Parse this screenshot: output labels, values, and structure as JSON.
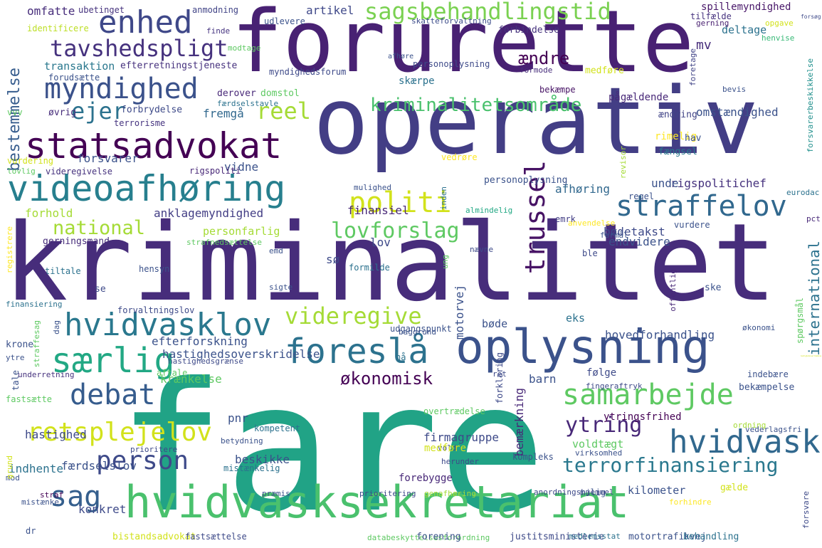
{
  "words": [
    {
      "text": "fare",
      "color": "#21a386"
    },
    {
      "text": "kriminalitet",
      "color": "#472d7b"
    },
    {
      "text": "operativ",
      "color": "#433e85"
    },
    {
      "text": "forurette",
      "color": "#482173"
    },
    {
      "text": "hvidvasksekretariat",
      "color": "#4ac16d"
    },
    {
      "text": "oplysning",
      "color": "#3b528b"
    },
    {
      "text": "videoafhøring",
      "color": "#277f8e"
    },
    {
      "text": "statsadvokat",
      "color": "#440154"
    },
    {
      "text": "enhed",
      "color": "#3f4889"
    },
    {
      "text": "myndighed",
      "color": "#3b528b"
    },
    {
      "text": "tavshedspligt",
      "color": "#46327e"
    },
    {
      "text": "sagsbehandlingstid",
      "color": "#7ad151"
    },
    {
      "text": "kriminalitetsområde",
      "color": "#4ac16d"
    },
    {
      "text": "ejer",
      "color": "#2c728e"
    },
    {
      "text": "reel",
      "color": "#a5db36"
    },
    {
      "text": "bestemmelse",
      "color": "#365c8d"
    },
    {
      "text": "straffelov",
      "color": "#31688e"
    },
    {
      "text": "trussel",
      "color": "#471365"
    },
    {
      "text": "politi",
      "color": "#d2e21b"
    },
    {
      "text": "lovforslag",
      "color": "#5ec962"
    },
    {
      "text": "national",
      "color": "#a5db36"
    },
    {
      "text": "hvidvasklov",
      "color": "#2a788e"
    },
    {
      "text": "videregive",
      "color": "#a5db36"
    },
    {
      "text": "særlig",
      "color": "#22a884"
    },
    {
      "text": "foreslå",
      "color": "#2c728e"
    },
    {
      "text": "debat",
      "color": "#365c8d"
    },
    {
      "text": "samarbejde",
      "color": "#5ec962"
    },
    {
      "text": "hvidvask",
      "color": "#31688e"
    },
    {
      "text": "retsplejelov",
      "color": "#d2e21b"
    },
    {
      "text": "person",
      "color": "#3e4a89"
    },
    {
      "text": "terrorfinansiering",
      "color": "#2a788e"
    },
    {
      "text": "sag",
      "color": "#355f8d"
    },
    {
      "text": "ytring",
      "color": "#482878"
    },
    {
      "text": "økonomisk",
      "color": "#440154"
    },
    {
      "text": "international",
      "color": "#2c728e"
    },
    {
      "text": "omfatte",
      "color": "#472d7b"
    },
    {
      "text": "ubetinget",
      "color": "#46337e"
    },
    {
      "text": "identificere",
      "color": "#bddf26"
    },
    {
      "text": "anmodning",
      "color": "#414487"
    },
    {
      "text": "udlevere",
      "color": "#3b528b"
    },
    {
      "text": "finde",
      "color": "#463480"
    },
    {
      "text": "artikel",
      "color": "#3f4889"
    },
    {
      "text": "transaktion",
      "color": "#2a788e"
    },
    {
      "text": "efterretningstjeneste",
      "color": "#46317e"
    },
    {
      "text": "forudsætte",
      "color": "#3b528b"
    },
    {
      "text": "modtage",
      "color": "#5ec962"
    },
    {
      "text": "spillemyndighed",
      "color": "#481769"
    },
    {
      "text": "tilfælde",
      "color": "#46327e"
    },
    {
      "text": "skatteforvaltning",
      "color": "#3d4d8a"
    },
    {
      "text": "forbindelse",
      "color": "#46337e"
    },
    {
      "text": "deltage",
      "color": "#2c728e"
    },
    {
      "text": "mv",
      "color": "#472d7b"
    },
    {
      "text": "gerning",
      "color": "#481f70"
    },
    {
      "text": "opgave",
      "color": "#d2e21b"
    },
    {
      "text": "forsøg",
      "color": "#3e4a89"
    },
    {
      "text": "henvise",
      "color": "#38b977"
    },
    {
      "text": "ændre",
      "color": "#440154"
    },
    {
      "text": "afhøre",
      "color": "#3b528b"
    },
    {
      "text": "personoplysning",
      "color": "#3e4a89"
    },
    {
      "text": "skærpe",
      "color": "#2c728e"
    },
    {
      "text": "bekæmpe",
      "color": "#471365"
    },
    {
      "text": "pågældende",
      "color": "#482878"
    },
    {
      "text": "formode",
      "color": "#472d7b"
    },
    {
      "text": "medføre",
      "color": "#d2e21b"
    },
    {
      "text": "foretage",
      "color": "#414487"
    },
    {
      "text": "bevis",
      "color": "#3b528b"
    },
    {
      "text": "forsvarerbeskikkelse",
      "color": "#21908d"
    },
    {
      "text": "derover",
      "color": "#482878"
    },
    {
      "text": "domstol",
      "color": "#5ec962"
    },
    {
      "text": "færdselstavle",
      "color": "#2c728e"
    },
    {
      "text": "vvv",
      "color": "#5ec962"
    },
    {
      "text": "øvrig",
      "color": "#472d7b"
    },
    {
      "text": "forbrydelse",
      "color": "#3e4a89"
    },
    {
      "text": "terrorisme",
      "color": "#463480"
    },
    {
      "text": "fremgå",
      "color": "#31688e"
    },
    {
      "text": "omstændighed",
      "color": "#3b528b"
    },
    {
      "text": "ændring",
      "color": "#414487"
    },
    {
      "text": "rimelig",
      "color": "#fde725"
    },
    {
      "text": "hav",
      "color": "#3b528b"
    },
    {
      "text": "fængsel",
      "color": "#2a788e"
    },
    {
      "text": "forsvarer",
      "color": "#3b528b"
    },
    {
      "text": "vedrøre",
      "color": "#fde725"
    },
    {
      "text": "vidne",
      "color": "#3b528b"
    },
    {
      "text": "vurdering",
      "color": "#d2e21b"
    },
    {
      "text": "lovlig",
      "color": "#5ec962"
    },
    {
      "text": "videregivelse",
      "color": "#46327e"
    },
    {
      "text": "rigspoliti",
      "color": "#482878"
    },
    {
      "text": "revisor",
      "color": "#a5db36"
    },
    {
      "text": "mulighed",
      "color": "#3b528b"
    },
    {
      "text": "inden",
      "color": "#2c728e"
    },
    {
      "text": "personoplysning",
      "color": "#3b528b"
    },
    {
      "text": "rigspolitichef",
      "color": "#46327e"
    },
    {
      "text": "unde",
      "color": "#3b528b"
    },
    {
      "text": "eurodac",
      "color": "#2c728e"
    },
    {
      "text": "afhøring",
      "color": "#31688e"
    },
    {
      "text": "regel",
      "color": "#3b528b"
    },
    {
      "text": "finansiel",
      "color": "#482878"
    },
    {
      "text": "almindelig",
      "color": "#22a884"
    },
    {
      "text": "anklagemyndighed",
      "color": "#433e85"
    },
    {
      "text": "forhold",
      "color": "#a5db36"
    },
    {
      "text": "personfarlig",
      "color": "#a5db36"
    },
    {
      "text": "bødetakst",
      "color": "#3e4a89"
    },
    {
      "text": "emrk",
      "color": "#433e85"
    },
    {
      "text": "anvendelse",
      "color": "#fde725"
    },
    {
      "text": "vurdere",
      "color": "#3b528b"
    },
    {
      "text": "formål",
      "color": "#3b528b"
    },
    {
      "text": "pct",
      "color": "#482878"
    },
    {
      "text": "lov",
      "color": "#3e4a89"
    },
    {
      "text": "endvidere",
      "color": "#3b528b"
    },
    {
      "text": "gerningsmand",
      "color": "#472d7b"
    },
    {
      "text": "strafnedsættelse",
      "color": "#5ec962"
    },
    {
      "text": "registrere",
      "color": "#fde725"
    },
    {
      "text": "emd",
      "color": "#3b528b"
    },
    {
      "text": "nævne",
      "color": "#3e4a89"
    },
    {
      "text": "ung",
      "color": "#5ec962"
    },
    {
      "text": "sø",
      "color": "#3e4a89"
    },
    {
      "text": "ble",
      "color": "#3e4a89"
    },
    {
      "text": "tiltale",
      "color": "#2c728e"
    },
    {
      "text": "hensyn",
      "color": "#3b528b"
    },
    {
      "text": "formilde",
      "color": "#2c728e"
    },
    {
      "text": "motorvej",
      "color": "#3b528b"
    },
    {
      "text": "offentlig",
      "color": "#482878"
    },
    {
      "text": "finansiering",
      "color": "#2c728e"
    },
    {
      "text": "se",
      "color": "#3e4a89"
    },
    {
      "text": "sigte",
      "color": "#3b528b"
    },
    {
      "text": "ske",
      "color": "#3b528b"
    },
    {
      "text": "forvaltningslov",
      "color": "#3e4a89"
    },
    {
      "text": "eks",
      "color": "#2c728e"
    },
    {
      "text": "hovedforhandling",
      "color": "#3b528b"
    },
    {
      "text": "straffesag",
      "color": "#5ec962"
    },
    {
      "text": "dag",
      "color": "#3b528b"
    },
    {
      "text": "bøde",
      "color": "#3b528b"
    },
    {
      "text": "udgangspunkt",
      "color": "#3b528b"
    },
    {
      "text": "baggrund",
      "color": "#3b528b"
    },
    {
      "text": "økonomi",
      "color": "#3b528b"
    },
    {
      "text": "spørgsmål",
      "color": "#5ec962"
    },
    {
      "text": "krone",
      "color": "#3b528b"
    },
    {
      "text": "efterforskning",
      "color": "#3b528b"
    },
    {
      "text": "hastighedsgrænse",
      "color": "#3e4a89"
    },
    {
      "text": "nå",
      "color": "#2c728e"
    },
    {
      "text": "ytre",
      "color": "#3b528b"
    },
    {
      "text": "hastighedsoverskridelse",
      "color": "#3b528b"
    },
    {
      "text": "ret",
      "color": "#3e4a89"
    },
    {
      "text": "barn",
      "color": "#3b528b"
    },
    {
      "text": "følge",
      "color": "#3e4a89"
    },
    {
      "text": "hastighedsovertrædelse",
      "color": "#d2e21b"
    },
    {
      "text": "tale",
      "color": "#3b528b"
    },
    {
      "text": "underretning",
      "color": "#46327e"
    },
    {
      "text": "aftale",
      "color": "#5ec962"
    },
    {
      "text": "krænkelse",
      "color": "#5ec962"
    },
    {
      "text": "forklaring",
      "color": "#3e4a89"
    },
    {
      "text": "fingeraftryk",
      "color": "#3e4a89"
    },
    {
      "text": "bekæmpelse",
      "color": "#3b528b"
    },
    {
      "text": "indebære",
      "color": "#3b528b"
    },
    {
      "text": "fastsætte",
      "color": "#5ec962"
    },
    {
      "text": "bemærkning",
      "color": "#482878"
    },
    {
      "text": "overtrædelse",
      "color": "#5ec962"
    },
    {
      "text": "pnr",
      "color": "#3b528b"
    },
    {
      "text": "ytringsfrihed",
      "color": "#440154"
    },
    {
      "text": "kompetent",
      "color": "#2c728e"
    },
    {
      "text": "ordning",
      "color": "#a5db36"
    },
    {
      "text": "vederlagsfri",
      "color": "#3b528b"
    },
    {
      "text": "betydning",
      "color": "#3b528b"
    },
    {
      "text": "prioritere",
      "color": "#3e4a89"
    },
    {
      "text": "firmagruppe",
      "color": "#3e4a89"
    },
    {
      "text": "hastighed",
      "color": "#3e4a89"
    },
    {
      "text": "vold",
      "color": "#3e4a89"
    },
    {
      "text": "voldtægt",
      "color": "#5ec962"
    },
    {
      "text": "virksomhed",
      "color": "#3b528b"
    },
    {
      "text": "kompleks",
      "color": "#3b528b"
    },
    {
      "text": "beskikke",
      "color": "#3b528b"
    },
    {
      "text": "indhente",
      "color": "#2c728e"
    },
    {
      "text": "færdselslov",
      "color": "#3b528b"
    },
    {
      "text": "mod",
      "color": "#3b528b"
    },
    {
      "text": "mistænkelig",
      "color": "#2c728e"
    },
    {
      "text": "medføre",
      "color": "#d2e21b"
    },
    {
      "text": "forebygge",
      "color": "#482878"
    },
    {
      "text": "herunder",
      "color": "#3e4a89"
    },
    {
      "text": "præmis",
      "color": "#3b528b"
    },
    {
      "text": "prioritering",
      "color": "#3e4a89"
    },
    {
      "text": "genafhøring",
      "color": "#a5db36"
    },
    {
      "text": "anordningshjemmel",
      "color": "#3e4a89"
    },
    {
      "text": "mulig",
      "color": "#3b528b"
    },
    {
      "text": "gælde",
      "color": "#d2e21b"
    },
    {
      "text": "kilometer",
      "color": "#3b528b"
    },
    {
      "text": "forsvare",
      "color": "#3e4a89"
    },
    {
      "text": "forhindre",
      "color": "#fde725"
    },
    {
      "text": "grund",
      "color": "#d2e21b"
    },
    {
      "text": "mistænke",
      "color": "#3b528b"
    },
    {
      "text": "konkret",
      "color": "#3e4a89"
    },
    {
      "text": "straf",
      "color": "#440154"
    },
    {
      "text": "dr",
      "color": "#3b528b"
    },
    {
      "text": "bistandsadvokat",
      "color": "#d2e21b"
    },
    {
      "text": "fastsættelse",
      "color": "#3e4a89"
    },
    {
      "text": "databeskyttelsesforordning",
      "color": "#5ec962"
    },
    {
      "text": "forening",
      "color": "#3b528b"
    },
    {
      "text": "justitsministerie",
      "color": "#3e4a89"
    },
    {
      "text": "medlemsstat",
      "color": "#2c728e"
    },
    {
      "text": "motortrafikvej",
      "color": "#3b528b"
    },
    {
      "text": "behandling",
      "color": "#2c728e"
    },
    {
      "text": "myndighedsforum",
      "color": "#3e4a89"
    },
    {
      "text": "eu",
      "color": "#3b528b"
    }
  ]
}
